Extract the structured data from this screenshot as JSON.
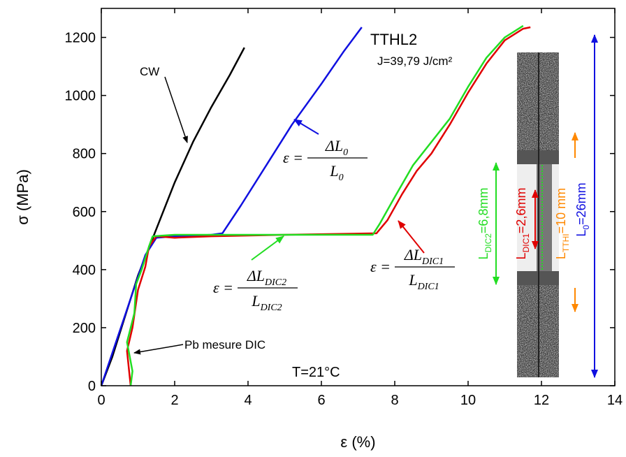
{
  "chart_data": {
    "type": "line",
    "xlabel": "ε (%)",
    "ylabel": "σ (MPa)",
    "xlim": [
      0,
      14
    ],
    "xticks": [
      0,
      2,
      4,
      6,
      8,
      10,
      12,
      14
    ],
    "ylim": [
      0,
      1300
    ],
    "yticks": [
      0,
      200,
      400,
      600,
      800,
      1000,
      1200
    ],
    "series": [
      {
        "name": "CW",
        "color": "#000000",
        "x": [
          0,
          0.3,
          0.6,
          1.0,
          1.5,
          2.0,
          2.5,
          3.0,
          3.5,
          3.9
        ],
        "values": [
          0,
          100,
          220,
          380,
          540,
          700,
          840,
          960,
          1070,
          1165
        ]
      },
      {
        "name": "TTHL2",
        "color": "#1010e0",
        "x": [
          0,
          0.4,
          0.8,
          1.2,
          1.5,
          2.0,
          3.0,
          3.3,
          3.8,
          4.5,
          5.2,
          6.0,
          6.6,
          7.1
        ],
        "values": [
          0,
          150,
          300,
          450,
          510,
          515,
          520,
          525,
          620,
          760,
          900,
          1040,
          1150,
          1235
        ]
      },
      {
        "color": "#e00000",
        "x": [
          0.8,
          0.75,
          0.7,
          0.85,
          1.0,
          1.2,
          1.3,
          1.5,
          2.0,
          3.0,
          5.0,
          7.5,
          7.8,
          8.2,
          8.6,
          9.0,
          9.5,
          10.0,
          10.5,
          11.0,
          11.5,
          11.7
        ],
        "values": [
          0,
          60,
          120,
          200,
          330,
          410,
          480,
          515,
          510,
          515,
          520,
          525,
          570,
          660,
          740,
          800,
          900,
          1010,
          1110,
          1190,
          1230,
          1235
        ]
      },
      {
        "color": "#22dd22",
        "x": [
          0.8,
          0.85,
          0.7,
          0.9,
          0.95,
          1.1,
          1.3,
          1.4,
          2.0,
          4.0,
          7.4,
          7.6,
          8.0,
          8.5,
          9.0,
          9.5,
          10.0,
          10.5,
          11.0,
          11.5
        ],
        "values": [
          0,
          50,
          150,
          250,
          350,
          400,
          480,
          515,
          520,
          520,
          520,
          560,
          650,
          760,
          840,
          920,
          1030,
          1130,
          1200,
          1240
        ]
      }
    ],
    "annotations": {
      "cw": "CW",
      "title": "TTHL2",
      "energy": "J=39,79 J/cm²",
      "pb": "Pb mesure DIC",
      "temp": "T=21°C",
      "formula_l0": {
        "lhs": "ε =",
        "num": "ΔL",
        "num_sub": "0",
        "den": "L",
        "den_sub": "0"
      },
      "formula_dic2": {
        "lhs": "ε =",
        "num": "ΔL",
        "num_sub": "DIC2",
        "den": "L",
        "den_sub": "DIC2"
      },
      "formula_dic1": {
        "lhs": "ε =",
        "num": "ΔL",
        "num_sub": "DIC1",
        "den": "L",
        "den_sub": "DIC1"
      }
    },
    "inset": {
      "dic2": {
        "main": "L",
        "sub": "DIC2",
        "rest": "=6,8mm"
      },
      "dic1": {
        "main": "L",
        "sub": "DIC1",
        "rest": "=2,6mm"
      },
      "tthi": {
        "main": "L",
        "sub": "TTHI",
        "rest": "=10 mm"
      },
      "l0": {
        "main": "L",
        "sub": "0",
        "rest": "=26mm"
      }
    }
  }
}
